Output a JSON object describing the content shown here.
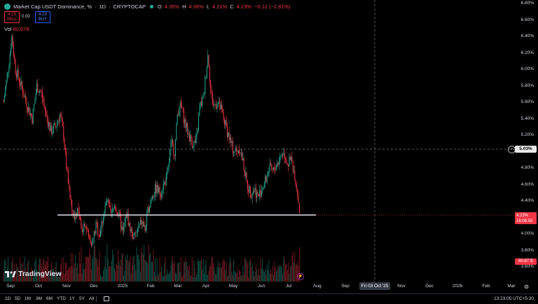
{
  "header": {
    "symbol_title": "Market Cap USDT Dominance, %",
    "interval": "1D",
    "exchange": "CRYPTOCAP",
    "ohlc": {
      "o_key": "O",
      "o": "4.35%",
      "h_key": "H",
      "h": "4.36%",
      "l_key": "L",
      "l": "4.21%",
      "c_key": "C",
      "c": "4.23%",
      "change": "−0.12 (−2.81%)"
    },
    "sell_price": "4.23",
    "sell_label": "SELL",
    "spread": "0.00",
    "buy_price": "4.23",
    "buy_label": "BUY",
    "vol_label": "Vol",
    "vol_value": "80.678"
  },
  "price_axis": {
    "labels": [
      "6.80%",
      "6.60%",
      "6.40%",
      "6.20%",
      "6.00%",
      "5.80%",
      "5.60%",
      "5.40%",
      "5.20%",
      "4.80%",
      "4.60%",
      "4.40%",
      "4.00%",
      "3.80%",
      "3.60%"
    ],
    "crosshair_price": "5.03%",
    "last_price": "4.23%",
    "countdown": "16:06:55",
    "last_volume": "80.67 B"
  },
  "time_axis": {
    "labels": [
      "Sep",
      "Oct",
      "Nov",
      "Dec",
      "2025",
      "Feb",
      "Mar",
      "Apr",
      "May",
      "Jun",
      "Jul",
      "Aug",
      "Sep",
      "Nov",
      "Dec",
      "2026",
      "Feb",
      "Mar"
    ],
    "crosshair_date": "Fri 03 Oct '25"
  },
  "branding": {
    "logo_text": "TradingView"
  },
  "bottom_bar": {
    "timeframes": [
      "1D",
      "5D",
      "1M",
      "3M",
      "6M",
      "YTD",
      "1Y",
      "5Y",
      "All"
    ],
    "clock": "13:23:05 UTC+5:30"
  },
  "colors": {
    "up": "#22ab94",
    "down": "#f23645",
    "background": "#000000",
    "support_line": "#d1d4dc"
  },
  "chart_data": {
    "type": "candlestick",
    "title": "Market Cap USDT Dominance, %",
    "yunit": "%",
    "ylim": [
      3.5,
      6.85
    ],
    "support_level": 4.23,
    "crosshair": {
      "date": "Fri 03 Oct '25",
      "value": 5.03
    },
    "series": [
      {
        "date": "2024-08-30",
        "value": 5.6
      },
      {
        "date": "2024-09-05",
        "value": 6.1
      },
      {
        "date": "2024-09-08",
        "value": 6.4
      },
      {
        "date": "2024-09-12",
        "value": 6.0
      },
      {
        "date": "2024-09-18",
        "value": 5.8
      },
      {
        "date": "2024-09-25",
        "value": 5.55
      },
      {
        "date": "2024-09-30",
        "value": 5.4
      },
      {
        "date": "2024-10-05",
        "value": 5.8
      },
      {
        "date": "2024-10-10",
        "value": 5.7
      },
      {
        "date": "2024-10-15",
        "value": 5.45
      },
      {
        "date": "2024-10-20",
        "value": 5.25
      },
      {
        "date": "2024-10-25",
        "value": 5.3
      },
      {
        "date": "2024-10-30",
        "value": 5.45
      },
      {
        "date": "2024-11-03",
        "value": 5.2
      },
      {
        "date": "2024-11-06",
        "value": 4.8
      },
      {
        "date": "2024-11-10",
        "value": 4.4
      },
      {
        "date": "2024-11-14",
        "value": 4.2
      },
      {
        "date": "2024-11-18",
        "value": 4.3
      },
      {
        "date": "2024-11-22",
        "value": 4.05
      },
      {
        "date": "2024-11-26",
        "value": 4.15
      },
      {
        "date": "2024-11-30",
        "value": 3.95
      },
      {
        "date": "2024-12-04",
        "value": 3.9
      },
      {
        "date": "2024-12-08",
        "value": 4.1
      },
      {
        "date": "2024-12-12",
        "value": 4.0
      },
      {
        "date": "2024-12-16",
        "value": 4.25
      },
      {
        "date": "2024-12-20",
        "value": 4.4
      },
      {
        "date": "2024-12-24",
        "value": 4.2
      },
      {
        "date": "2024-12-28",
        "value": 4.35
      },
      {
        "date": "2025-01-02",
        "value": 4.2
      },
      {
        "date": "2025-01-06",
        "value": 4.0
      },
      {
        "date": "2025-01-10",
        "value": 4.25
      },
      {
        "date": "2025-01-14",
        "value": 4.05
      },
      {
        "date": "2025-01-18",
        "value": 3.95
      },
      {
        "date": "2025-01-22",
        "value": 4.05
      },
      {
        "date": "2025-01-26",
        "value": 4.15
      },
      {
        "date": "2025-01-30",
        "value": 4.05
      },
      {
        "date": "2025-02-03",
        "value": 4.35
      },
      {
        "date": "2025-02-07",
        "value": 4.5
      },
      {
        "date": "2025-02-11",
        "value": 4.55
      },
      {
        "date": "2025-02-15",
        "value": 4.5
      },
      {
        "date": "2025-02-19",
        "value": 4.6
      },
      {
        "date": "2025-02-23",
        "value": 4.7
      },
      {
        "date": "2025-02-27",
        "value": 5.1
      },
      {
        "date": "2025-03-03",
        "value": 5.0
      },
      {
        "date": "2025-03-06",
        "value": 5.5
      },
      {
        "date": "2025-03-10",
        "value": 5.55
      },
      {
        "date": "2025-03-14",
        "value": 5.35
      },
      {
        "date": "2025-03-18",
        "value": 5.2
      },
      {
        "date": "2025-03-22",
        "value": 5.1
      },
      {
        "date": "2025-03-26",
        "value": 5.1
      },
      {
        "date": "2025-03-30",
        "value": 5.55
      },
      {
        "date": "2025-04-03",
        "value": 5.65
      },
      {
        "date": "2025-04-06",
        "value": 6.0
      },
      {
        "date": "2025-04-08",
        "value": 6.2
      },
      {
        "date": "2025-04-11",
        "value": 5.7
      },
      {
        "date": "2025-04-14",
        "value": 5.55
      },
      {
        "date": "2025-04-18",
        "value": 5.6
      },
      {
        "date": "2025-04-22",
        "value": 5.5
      },
      {
        "date": "2025-04-26",
        "value": 5.35
      },
      {
        "date": "2025-04-30",
        "value": 5.2
      },
      {
        "date": "2025-05-04",
        "value": 5.05
      },
      {
        "date": "2025-05-08",
        "value": 5.0
      },
      {
        "date": "2025-05-12",
        "value": 5.05
      },
      {
        "date": "2025-05-16",
        "value": 4.85
      },
      {
        "date": "2025-05-20",
        "value": 4.6
      },
      {
        "date": "2025-05-24",
        "value": 4.5
      },
      {
        "date": "2025-05-28",
        "value": 4.55
      },
      {
        "date": "2025-06-01",
        "value": 4.45
      },
      {
        "date": "2025-06-05",
        "value": 4.55
      },
      {
        "date": "2025-06-09",
        "value": 4.65
      },
      {
        "date": "2025-06-13",
        "value": 4.8
      },
      {
        "date": "2025-06-17",
        "value": 4.75
      },
      {
        "date": "2025-06-21",
        "value": 4.85
      },
      {
        "date": "2025-06-24",
        "value": 4.9
      },
      {
        "date": "2025-06-27",
        "value": 5.0
      },
      {
        "date": "2025-06-30",
        "value": 4.95
      },
      {
        "date": "2025-07-03",
        "value": 4.85
      },
      {
        "date": "2025-07-07",
        "value": 4.9
      },
      {
        "date": "2025-07-10",
        "value": 4.75
      },
      {
        "date": "2025-07-13",
        "value": 4.55
      },
      {
        "date": "2025-07-15",
        "value": 4.35
      },
      {
        "date": "2025-07-16",
        "value": 4.23
      }
    ]
  }
}
